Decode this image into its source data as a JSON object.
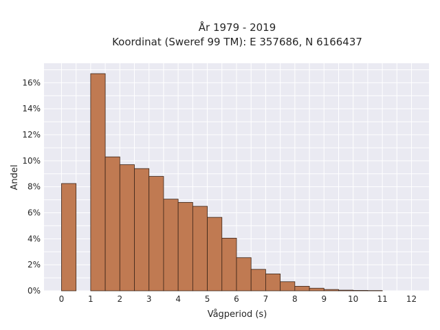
{
  "chart_data": {
    "type": "bar",
    "title_line1": "År 1979 - 2019",
    "title_line2": "Koordinat (Sweref 99 TM): E 357686, N 6166437",
    "xlabel": "Vågperiod (s)",
    "ylabel": "Andel",
    "bar_color": "#c07a52",
    "background_color": "#eaeaf2",
    "grid": true,
    "xlim": [
      -0.6,
      12.6
    ],
    "ylim": [
      0,
      17.5
    ],
    "bin_width": 0.5,
    "xticks": [
      "0",
      "1",
      "2",
      "3",
      "4",
      "5",
      "6",
      "7",
      "8",
      "9",
      "10",
      "11",
      "12"
    ],
    "yticks": [
      "0%",
      "2%",
      "4%",
      "6%",
      "8%",
      "10%",
      "12%",
      "14%",
      "16%"
    ],
    "bins": [
      {
        "x": 0.0,
        "value": 8.25
      },
      {
        "x": 1.0,
        "value": 16.7
      },
      {
        "x": 1.5,
        "value": 10.3
      },
      {
        "x": 2.0,
        "value": 9.7
      },
      {
        "x": 2.5,
        "value": 9.4
      },
      {
        "x": 3.0,
        "value": 8.8
      },
      {
        "x": 3.5,
        "value": 7.05
      },
      {
        "x": 4.0,
        "value": 6.8
      },
      {
        "x": 4.5,
        "value": 6.5
      },
      {
        "x": 5.0,
        "value": 5.65
      },
      {
        "x": 5.5,
        "value": 4.05
      },
      {
        "x": 6.0,
        "value": 2.55
      },
      {
        "x": 6.5,
        "value": 1.65
      },
      {
        "x": 7.0,
        "value": 1.3
      },
      {
        "x": 7.5,
        "value": 0.7
      },
      {
        "x": 8.0,
        "value": 0.35
      },
      {
        "x": 8.5,
        "value": 0.2
      },
      {
        "x": 9.0,
        "value": 0.1
      },
      {
        "x": 9.5,
        "value": 0.05
      },
      {
        "x": 10.0,
        "value": 0.03
      },
      {
        "x": 10.5,
        "value": 0.02
      }
    ]
  }
}
